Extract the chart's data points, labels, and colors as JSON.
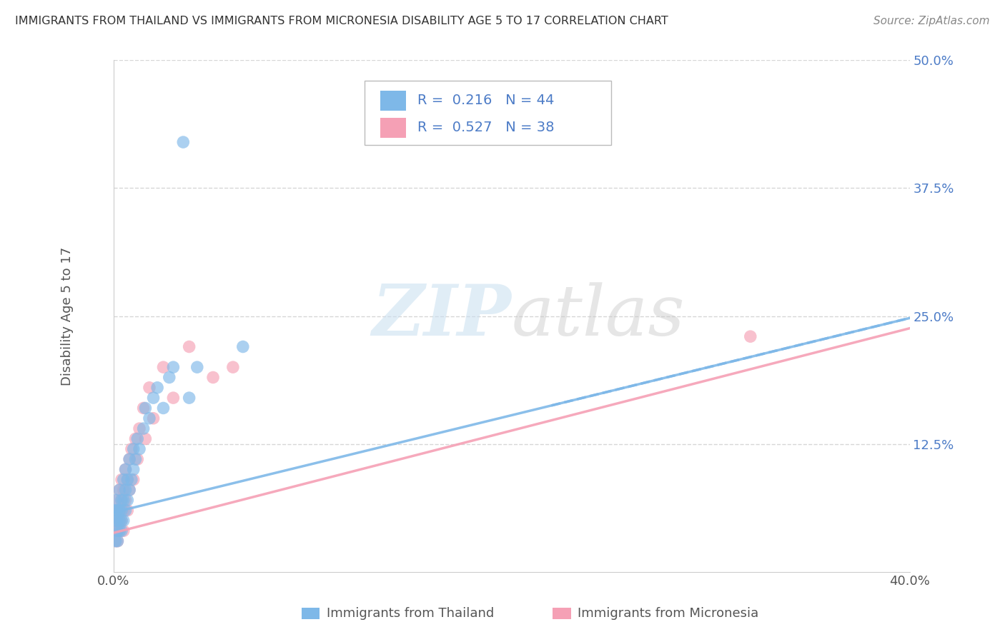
{
  "title": "IMMIGRANTS FROM THAILAND VS IMMIGRANTS FROM MICRONESIA DISABILITY AGE 5 TO 17 CORRELATION CHART",
  "source": "Source: ZipAtlas.com",
  "ylabel": "Disability Age 5 to 17",
  "xlim": [
    0.0,
    0.4
  ],
  "ylim": [
    0.0,
    0.5
  ],
  "xticks": [
    0.0,
    0.1,
    0.2,
    0.3,
    0.4
  ],
  "xtick_labels": [
    "0.0%",
    "",
    "",
    "",
    "40.0%"
  ],
  "yticks": [
    0.0,
    0.125,
    0.25,
    0.375,
    0.5
  ],
  "ytick_labels": [
    "",
    "12.5%",
    "25.0%",
    "37.5%",
    "50.0%"
  ],
  "thailand_color": "#7eb8e8",
  "micronesia_color": "#f5a0b5",
  "thailand_R": 0.216,
  "thailand_N": 44,
  "micronesia_R": 0.527,
  "micronesia_N": 38,
  "legend_label_1": "Immigrants from Thailand",
  "legend_label_2": "Immigrants from Micronesia",
  "watermark_zip": "ZIP",
  "watermark_atlas": "atlas",
  "background_color": "#ffffff",
  "grid_color": "#cccccc",
  "title_color": "#333333",
  "axis_label_color": "#555555",
  "tick_color_blue": "#4d7cc7",
  "thailand_x": [
    0.001,
    0.001,
    0.001,
    0.001,
    0.002,
    0.002,
    0.002,
    0.002,
    0.003,
    0.003,
    0.003,
    0.003,
    0.004,
    0.004,
    0.004,
    0.004,
    0.005,
    0.005,
    0.005,
    0.006,
    0.006,
    0.006,
    0.007,
    0.007,
    0.008,
    0.008,
    0.009,
    0.01,
    0.01,
    0.011,
    0.012,
    0.013,
    0.015,
    0.016,
    0.018,
    0.02,
    0.022,
    0.025,
    0.028,
    0.03,
    0.035,
    0.038,
    0.042,
    0.065
  ],
  "thailand_y": [
    0.05,
    0.06,
    0.03,
    0.07,
    0.04,
    0.05,
    0.06,
    0.03,
    0.05,
    0.06,
    0.04,
    0.08,
    0.05,
    0.07,
    0.06,
    0.04,
    0.07,
    0.05,
    0.09,
    0.08,
    0.06,
    0.1,
    0.07,
    0.09,
    0.08,
    0.11,
    0.09,
    0.1,
    0.12,
    0.11,
    0.13,
    0.12,
    0.14,
    0.16,
    0.15,
    0.17,
    0.18,
    0.16,
    0.19,
    0.2,
    0.42,
    0.17,
    0.2,
    0.22
  ],
  "micronesia_x": [
    0.001,
    0.001,
    0.001,
    0.002,
    0.002,
    0.002,
    0.002,
    0.003,
    0.003,
    0.003,
    0.003,
    0.004,
    0.004,
    0.004,
    0.005,
    0.005,
    0.005,
    0.006,
    0.006,
    0.007,
    0.007,
    0.008,
    0.008,
    0.009,
    0.01,
    0.011,
    0.012,
    0.013,
    0.015,
    0.016,
    0.018,
    0.02,
    0.025,
    0.03,
    0.038,
    0.05,
    0.06,
    0.32
  ],
  "micronesia_y": [
    0.03,
    0.05,
    0.04,
    0.06,
    0.04,
    0.07,
    0.03,
    0.05,
    0.08,
    0.06,
    0.04,
    0.07,
    0.05,
    0.09,
    0.06,
    0.08,
    0.04,
    0.1,
    0.07,
    0.09,
    0.06,
    0.11,
    0.08,
    0.12,
    0.09,
    0.13,
    0.11,
    0.14,
    0.16,
    0.13,
    0.18,
    0.15,
    0.2,
    0.17,
    0.22,
    0.19,
    0.2,
    0.23
  ],
  "th_line_x0": 0.0,
  "th_line_y0": 0.058,
  "th_line_x1": 0.4,
  "th_line_y1": 0.248,
  "mi_line_x0": 0.0,
  "mi_line_y0": 0.038,
  "mi_line_x1": 0.4,
  "mi_line_y1": 0.238
}
